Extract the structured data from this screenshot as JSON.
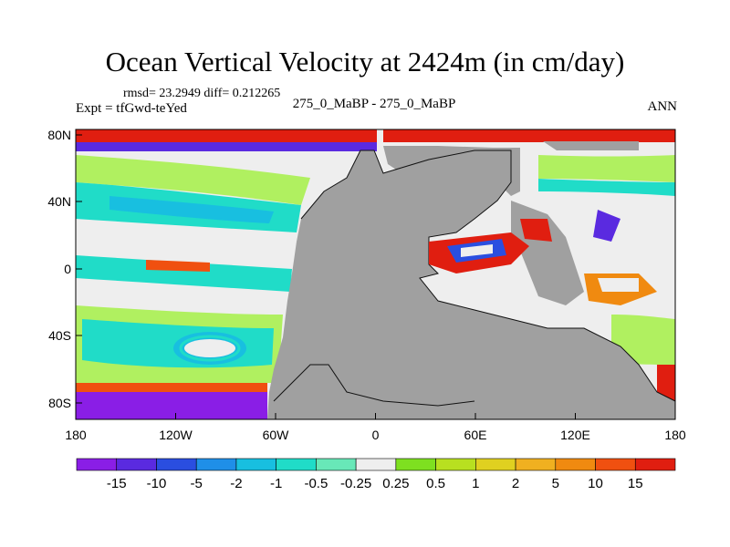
{
  "title": "Ocean Vertical Velocity at 2424m (in cm/day)",
  "stats": "rmsd= 23.2949 diff= 0.212265",
  "experiment": "Expt = tfGwd-teYed",
  "comparison": "275_0_MaBP - 275_0_MaBP",
  "season": "ANN",
  "lat_ticks": [
    "80N",
    "40N",
    "0",
    "40S",
    "80S"
  ],
  "lon_ticks": [
    "180",
    "120W",
    "60W",
    "0",
    "60E",
    "120E",
    "180"
  ],
  "colorbar": {
    "labels": [
      "-15",
      "-10",
      "-5",
      "-2",
      "-1",
      "-0.5",
      "-0.25",
      "0.25",
      "0.5",
      "1",
      "2",
      "5",
      "10",
      "15"
    ],
    "colors": [
      "#8a1ee6",
      "#5a2ae0",
      "#2a4ee0",
      "#1f8fe8",
      "#18bfe0",
      "#20dcc8",
      "#68e8b8",
      "#eeeeee",
      "#7ee020",
      "#b8e020",
      "#e0d020",
      "#f0b020",
      "#f08a10",
      "#f05010",
      "#e01e10"
    ]
  },
  "palette": {
    "land": "#a0a0a0",
    "neutral": "#eeeeee",
    "teal": "#20dcc8",
    "cyan": "#18bfe0",
    "light_green": "#b0f060"
  }
}
